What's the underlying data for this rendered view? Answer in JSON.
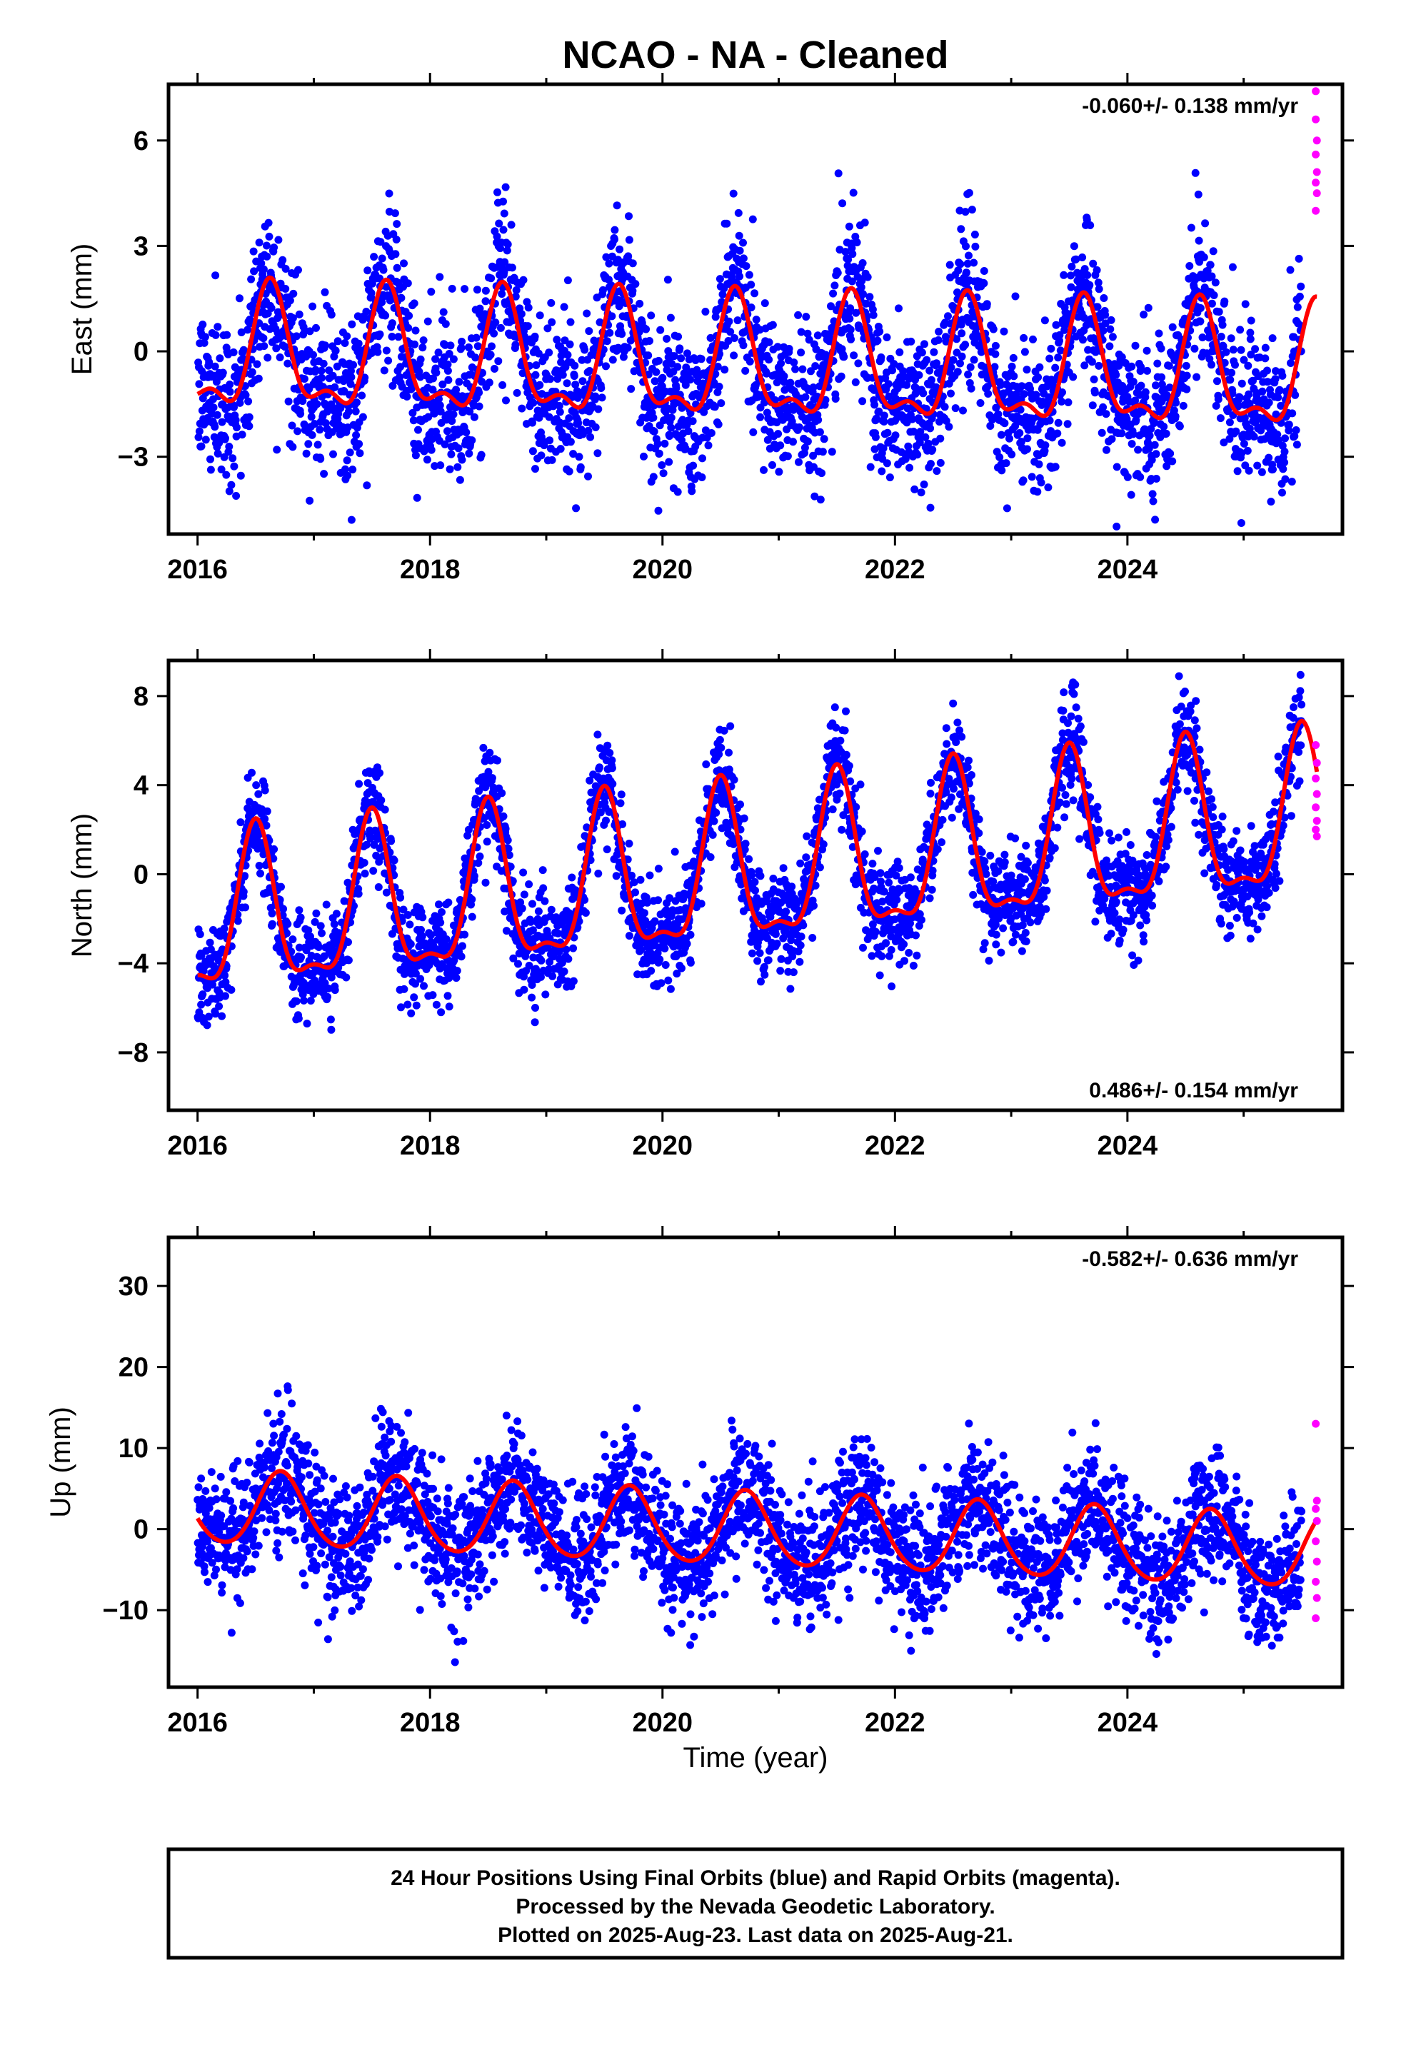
{
  "chart_data": {
    "type": "scatter",
    "title": "NCAO  - NA - Cleaned",
    "xlabel": "Time (year)",
    "x_ticks": [
      2016,
      2018,
      2020,
      2022,
      2024
    ],
    "xlim": [
      2015.75,
      2025.85
    ],
    "panels": [
      {
        "component": "east",
        "ylabel": "East (mm)",
        "ylim": [
          -5.2,
          7.6
        ],
        "y_ticks": [
          -3,
          0,
          3,
          6
        ],
        "y_tick_labels": [
          "−3",
          "0",
          "3",
          "6"
        ],
        "rate_text": "-0.060+/- 0.138 mm/yr",
        "rate_position": "top-right",
        "model": {
          "offset": -0.45,
          "trend": -0.06,
          "annual_amplitude": 1.6,
          "annual_peak_phase": 0.63,
          "semiannual_amplitude": 0.7,
          "semiannual_peak_phase": 0.62,
          "scatter": 1.1,
          "ref_year": 2020.8
        },
        "rapid_points": [
          [
            2025.62,
            7.4
          ],
          [
            2025.62,
            6.6
          ],
          [
            2025.63,
            6.0
          ],
          [
            2025.62,
            5.6
          ],
          [
            2025.63,
            5.1
          ],
          [
            2025.62,
            4.8
          ],
          [
            2025.63,
            4.5
          ],
          [
            2025.62,
            4.0
          ]
        ]
      },
      {
        "component": "north",
        "ylabel": "North (mm)",
        "ylim": [
          -10.6,
          9.6
        ],
        "y_ticks": [
          -8,
          -4,
          0,
          4,
          8
        ],
        "y_tick_labels": [
          "−8",
          "−4",
          "0",
          "4",
          "8"
        ],
        "rate_text": "0.486+/- 0.154 mm/yr",
        "rate_position": "bottom-right",
        "model": {
          "offset": 0.0,
          "trend": 0.486,
          "annual_amplitude": 3.4,
          "annual_peak_phase": 0.5,
          "semiannual_amplitude": 1.2,
          "semiannual_peak_phase": 0.5,
          "scatter": 1.1,
          "ref_year": 2020.8
        },
        "rapid_points": [
          [
            2025.62,
            5.8
          ],
          [
            2025.63,
            5.0
          ],
          [
            2025.62,
            4.3
          ],
          [
            2025.63,
            3.6
          ],
          [
            2025.62,
            3.0
          ],
          [
            2025.63,
            2.4
          ],
          [
            2025.62,
            2.0
          ],
          [
            2025.63,
            1.7
          ]
        ]
      },
      {
        "component": "up",
        "ylabel": "Up (mm)",
        "ylim": [
          -19.5,
          36.0
        ],
        "y_ticks": [
          -10,
          0,
          10,
          20,
          30
        ],
        "y_tick_labels": [
          "−10",
          "0",
          "10",
          "20",
          "30"
        ],
        "rate_text": "-0.582+/- 0.636 mm/yr",
        "rate_position": "top-right",
        "model": {
          "offset": -0.2,
          "trend": -0.582,
          "annual_amplitude": 4.5,
          "annual_peak_phase": 0.72,
          "semiannual_amplitude": 0.5,
          "semiannual_peak_phase": 0.7,
          "scatter": 4.0,
          "ref_year": 2020.8
        },
        "rapid_points": [
          [
            2025.62,
            13.0
          ],
          [
            2025.63,
            3.5
          ],
          [
            2025.62,
            2.5
          ],
          [
            2025.63,
            1.0
          ],
          [
            2025.62,
            -1.5
          ],
          [
            2025.63,
            -4.0
          ],
          [
            2025.62,
            -6.5
          ],
          [
            2025.63,
            -8.5
          ],
          [
            2025.62,
            -11.0
          ]
        ]
      }
    ],
    "series": [
      {
        "name": "Final Orbits",
        "color": "#0000ff",
        "x_range": [
          2016.0,
          2025.5
        ],
        "sampling": "daily"
      },
      {
        "name": "Rapid Orbits",
        "color": "#ff00ff"
      },
      {
        "name": "model fit",
        "color": "#ff0000"
      }
    ]
  },
  "footer": {
    "line1": "24 Hour Positions Using Final Orbits (blue) and Rapid Orbits (magenta).",
    "line2": "Processed by the Nevada Geodetic Laboratory.",
    "line3": "Plotted on 2025-Aug-23. Last data on 2025-Aug-21."
  }
}
